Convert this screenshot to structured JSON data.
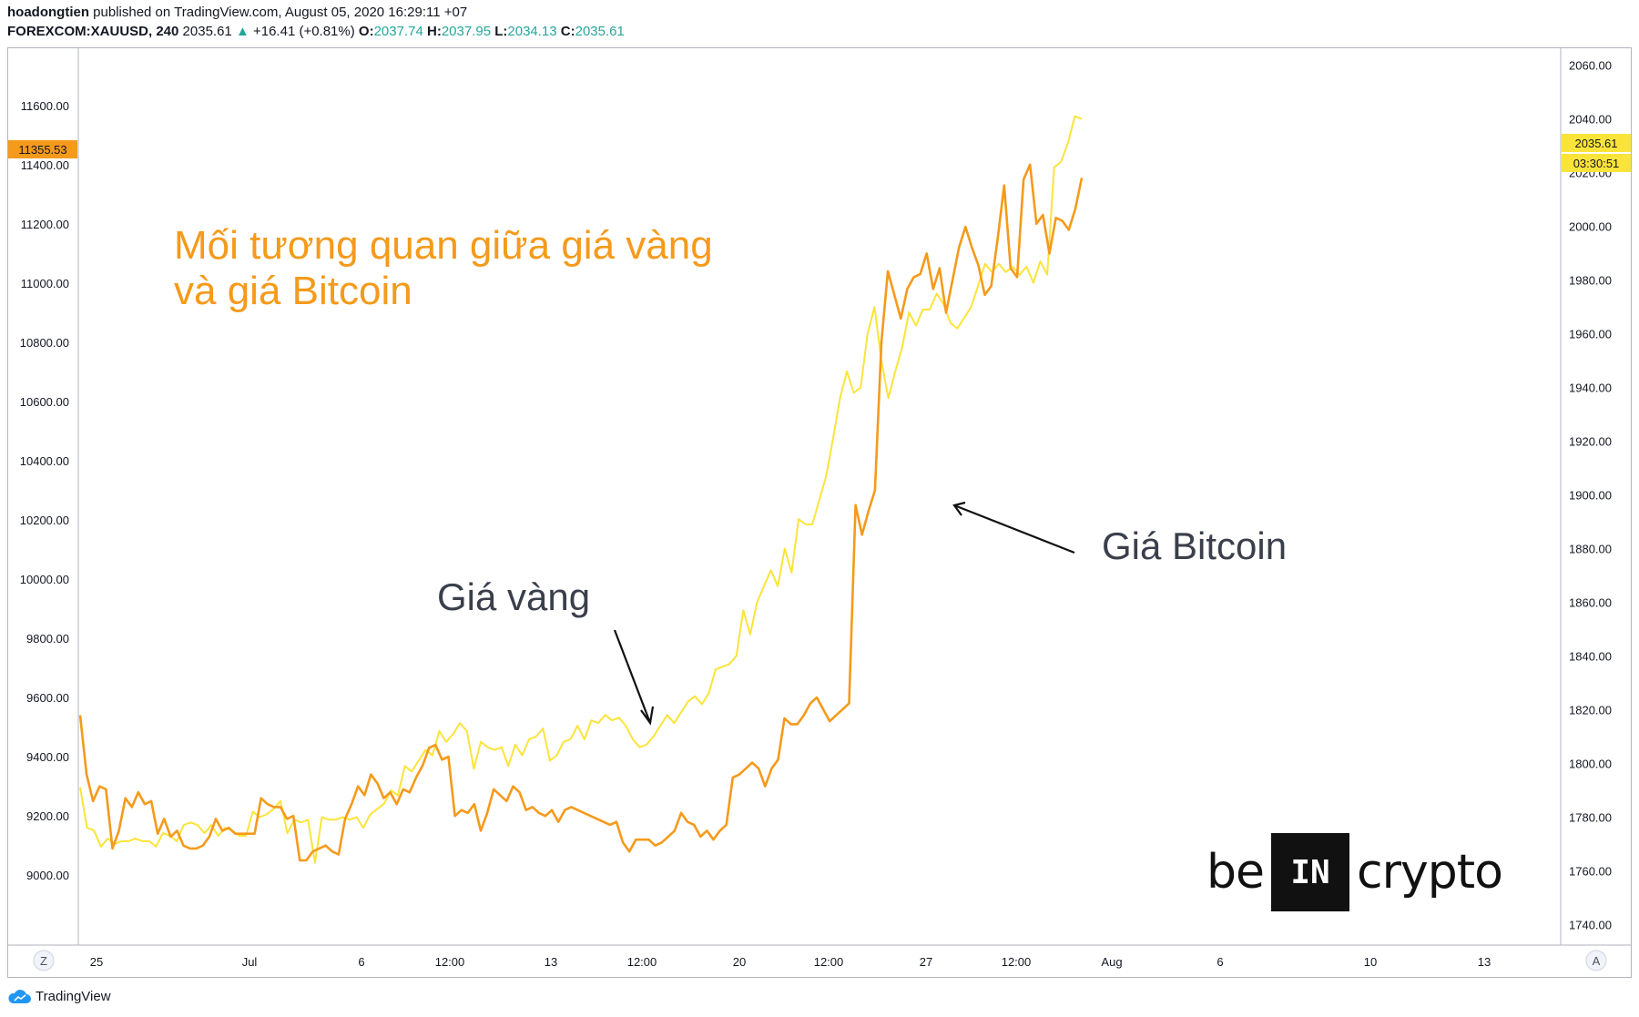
{
  "header": {
    "author": "hoadongtien",
    "published_text": "published on TradingView.com, August 05, 2020 16:29:11 +07",
    "symbol": "FOREXCOM:XAUUSD, 240",
    "last": "2035.61",
    "change": "+16.41 (+0.81%)",
    "open_label": "O:",
    "open": "2037.74",
    "high_label": "H:",
    "high": "2037.95",
    "low_label": "L:",
    "low": "2034.13",
    "close_label": "C:",
    "close": "2035.61"
  },
  "annotations": {
    "title_line1": "Mối tương quan giữa giá vàng",
    "title_line2": "và giá Bitcoin",
    "gold_label": "Giá vàng",
    "btc_label": "Giá Bitcoin"
  },
  "badges": {
    "left_price": "11355.53",
    "right_price": "2035.61",
    "right_countdown": "03:30:51"
  },
  "axis_buttons": {
    "left": "Z",
    "right": "A"
  },
  "logo": {
    "left": "be",
    "middle": "IN",
    "right": "crypto"
  },
  "footer": {
    "brand": "TradingView"
  },
  "colors": {
    "gold_line": "#fbe43a",
    "btc_line": "#f59a1b",
    "title": "#f59a1b",
    "label_text": "#3a3f4b"
  },
  "chart_data": {
    "type": "line",
    "x_ticks": [
      "25",
      "Jul",
      "6",
      "12:00",
      "13",
      "12:00",
      "20",
      "12:00",
      "27",
      "12:00",
      "Aug",
      "6",
      "10",
      "13"
    ],
    "left_axis": {
      "ticks": [
        "11600.00",
        "11400.00",
        "11200.00",
        "11000.00",
        "10800.00",
        "10600.00",
        "10400.00",
        "10200.00",
        "10000.00",
        "9800.00",
        "9600.00",
        "9400.00",
        "9200.00",
        "9000.00"
      ],
      "range": [
        8770,
        11790
      ]
    },
    "right_axis": {
      "ticks": [
        "2060.00",
        "2040.00",
        "2020.00",
        "2000.00",
        "1980.00",
        "1960.00",
        "1940.00",
        "1920.00",
        "1900.00",
        "1880.00",
        "1860.00",
        "1840.00",
        "1820.00",
        "1800.00",
        "1780.00",
        "1760.00",
        "1740.00"
      ],
      "range": [
        1733,
        2066
      ]
    },
    "grid": false,
    "series": [
      {
        "axis": "right",
        "values": [
          1791,
          1776,
          1775,
          1769,
          1772,
          1770,
          1771,
          1771,
          1772,
          1771,
          1771,
          1769,
          1774,
          1773,
          1771,
          1777,
          1778,
          1777,
          1774,
          1777,
          1773,
          1776,
          1775,
          1773,
          1773,
          1782,
          1780,
          1781,
          1783,
          1786,
          1774,
          1779,
          1778,
          1779,
          1763,
          1780,
          1779,
          1779,
          1780,
          1779,
          1780,
          1776,
          1781,
          1783,
          1785,
          1790,
          1788,
          1799,
          1797,
          1801,
          1805,
          1803,
          1812,
          1808,
          1811,
          1815,
          1812,
          1798,
          1808,
          1806,
          1805,
          1806,
          1799,
          1807,
          1803,
          1809,
          1810,
          1813,
          1801,
          1803,
          1808,
          1809,
          1814,
          1809,
          1816,
          1815,
          1818,
          1816,
          1817,
          1814,
          1809,
          1806,
          1807,
          1810,
          1814,
          1818,
          1815,
          1819,
          1823,
          1825,
          1822,
          1826,
          1835,
          1836,
          1837,
          1840,
          1857,
          1848,
          1860,
          1866,
          1872,
          1866,
          1880,
          1871,
          1891,
          1889,
          1889,
          1898,
          1907,
          1921,
          1936,
          1946,
          1938,
          1940,
          1960,
          1970,
          1950,
          1936,
          1946,
          1955,
          1968,
          1963,
          1969,
          1969,
          1975,
          1971,
          1964,
          1962,
          1966,
          1970,
          1978,
          1986,
          1983,
          1986,
          1983,
          1985,
          1982,
          1985,
          1979,
          1987,
          1982,
          2022,
          2024,
          2031,
          2041,
          2040
        ]
      },
      {
        "axis": "left",
        "values": [
          9540,
          9340,
          9250,
          9300,
          9290,
          9090,
          9150,
          9260,
          9230,
          9280,
          9240,
          9250,
          9140,
          9190,
          9130,
          9150,
          9100,
          9090,
          9090,
          9100,
          9130,
          9190,
          9150,
          9160,
          9140,
          9140,
          9140,
          9140,
          9260,
          9240,
          9230,
          9230,
          9190,
          9200,
          9050,
          9050,
          9080,
          9090,
          9100,
          9080,
          9070,
          9190,
          9240,
          9300,
          9270,
          9340,
          9310,
          9260,
          9280,
          9240,
          9290,
          9280,
          9330,
          9370,
          9430,
          9440,
          9390,
          9400,
          9200,
          9220,
          9210,
          9240,
          9150,
          9210,
          9290,
          9270,
          9250,
          9300,
          9280,
          9220,
          9230,
          9210,
          9200,
          9220,
          9180,
          9220,
          9230,
          9220,
          9210,
          9200,
          9190,
          9180,
          9170,
          9180,
          9110,
          9080,
          9120,
          9120,
          9120,
          9100,
          9110,
          9130,
          9150,
          9210,
          9180,
          9170,
          9130,
          9150,
          9120,
          9150,
          9170,
          9330,
          9340,
          9360,
          9380,
          9360,
          9300,
          9360,
          9390,
          9530,
          9510,
          9510,
          9540,
          9580,
          9600,
          9560,
          9520,
          9540,
          9560,
          9580,
          10250,
          10150,
          10230,
          10300,
          10800,
          11040,
          10960,
          10880,
          10980,
          11020,
          11030,
          11100,
          10980,
          11050,
          10900,
          11010,
          11120,
          11190,
          11120,
          11060,
          10960,
          10990,
          11150,
          11330,
          11050,
          11020,
          11350,
          11400,
          11200,
          11230,
          11100,
          11220,
          11210,
          11180,
          11250,
          11355
        ]
      }
    ]
  }
}
